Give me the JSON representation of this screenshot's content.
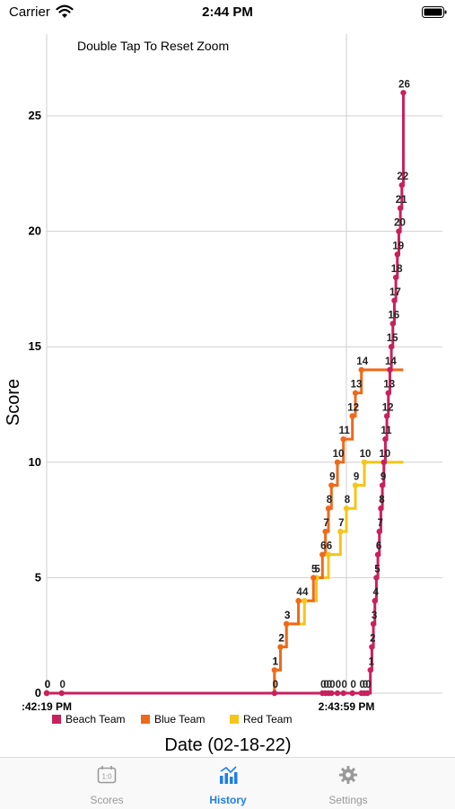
{
  "status_bar": {
    "carrier": "Carrier",
    "time": "2:44 PM"
  },
  "chart": {
    "hint": "Double Tap To Reset Zoom"
  },
  "chart_data": {
    "type": "line",
    "line_style": "step",
    "ylabel": "Score",
    "xlabel": "Date (02-18-22)",
    "x_tick_labels": [
      ":42:19 PM",
      "2:43:59 PM"
    ],
    "y_ticks": [
      0,
      5,
      10,
      15,
      20,
      25
    ],
    "ylim": [
      0,
      28
    ],
    "grid": true,
    "legend_position": "bottom-left",
    "series": [
      {
        "name": "Beach Team",
        "color": "#c8215d",
        "x": [
          "2:42:19",
          "2:42:24",
          "2:43:35",
          "2:43:51",
          "2:43:52",
          "2:43:53",
          "2:43:54",
          "2:43:56",
          "2:43:58",
          "2:44:01",
          "2:44:04",
          "2:44:05",
          "2:44:06",
          "2:44:07",
          "2:44:07.5",
          "2:44:08",
          "2:44:08.5",
          "2:44:09",
          "2:44:09.5",
          "2:44:10",
          "2:44:10.5",
          "2:44:11",
          "2:44:11.5",
          "2:44:12",
          "2:44:12.5",
          "2:44:13",
          "2:44:13.5",
          "2:44:14",
          "2:44:14.5",
          "2:44:15",
          "2:44:15.5",
          "2:44:16",
          "2:44:16.5",
          "2:44:17",
          "2:44:17.5",
          "2:44:18"
        ],
        "y": [
          0,
          0,
          0,
          0,
          0,
          0,
          0,
          0,
          0,
          0,
          0,
          0,
          0,
          1,
          2,
          3,
          4,
          5,
          6,
          7,
          8,
          9,
          10,
          11,
          12,
          13,
          14,
          15,
          16,
          17,
          18,
          19,
          20,
          21,
          22,
          26
        ]
      },
      {
        "name": "Blue Team",
        "color": "#ee6a1b",
        "x": [
          "2:42:19",
          "2:43:35",
          "2:43:37",
          "2:43:39",
          "2:43:43",
          "2:43:48",
          "2:43:51",
          "2:43:52",
          "2:43:53",
          "2:43:54",
          "2:43:56",
          "2:43:58",
          "2:44:01",
          "2:44:02",
          "2:44:04",
          "2:44:18"
        ],
        "y": [
          0,
          1,
          2,
          3,
          4,
          5,
          6,
          7,
          8,
          9,
          10,
          11,
          12,
          13,
          14,
          14
        ]
      },
      {
        "name": "Red Team",
        "color": "#f5c518",
        "x": [
          "2:42:19",
          "2:43:35",
          "2:43:37",
          "2:43:39",
          "2:43:45",
          "2:43:49",
          "2:43:53",
          "2:43:57",
          "2:43:59",
          "2:44:02",
          "2:44:05",
          "2:44:18"
        ],
        "y": [
          0,
          1,
          2,
          3,
          4,
          5,
          6,
          7,
          8,
          9,
          10,
          10
        ]
      }
    ]
  },
  "tabs": [
    {
      "label": "Scores",
      "icon": "scoreboard-icon",
      "active": false
    },
    {
      "label": "History",
      "icon": "chart-icon",
      "active": true
    },
    {
      "label": "Settings",
      "icon": "gear-icon",
      "active": false
    }
  ],
  "colors": {
    "beach": "#c8215d",
    "blue": "#ee6a1b",
    "red": "#f5c518",
    "tab_active": "#1f7fe5",
    "tab_inactive": "#999999"
  }
}
